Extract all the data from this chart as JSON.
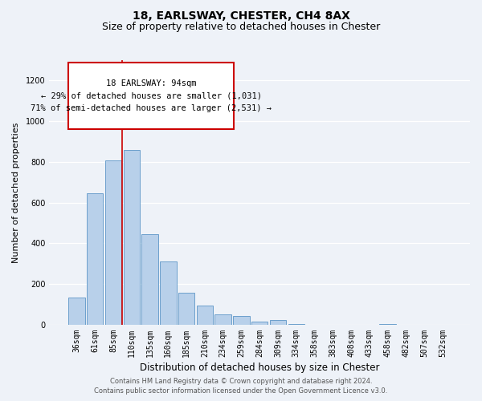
{
  "title": "18, EARLSWAY, CHESTER, CH4 8AX",
  "subtitle": "Size of property relative to detached houses in Chester",
  "xlabel": "Distribution of detached houses by size in Chester",
  "ylabel": "Number of detached properties",
  "bar_labels": [
    "36sqm",
    "61sqm",
    "85sqm",
    "110sqm",
    "135sqm",
    "160sqm",
    "185sqm",
    "210sqm",
    "234sqm",
    "259sqm",
    "284sqm",
    "309sqm",
    "334sqm",
    "358sqm",
    "383sqm",
    "408sqm",
    "433sqm",
    "458sqm",
    "482sqm",
    "507sqm",
    "532sqm"
  ],
  "bar_values": [
    135,
    645,
    808,
    860,
    445,
    310,
    158,
    95,
    52,
    42,
    15,
    22,
    5,
    0,
    0,
    0,
    0,
    5,
    0,
    0,
    0
  ],
  "bar_color": "#b8d0ea",
  "bar_edgecolor": "#6ca0cc",
  "vline_color": "#cc0000",
  "vline_x": 2.5,
  "annotation_line1": "18 EARLSWAY: 94sqm",
  "annotation_line2": "← 29% of detached houses are smaller (1,031)",
  "annotation_line3": "71% of semi-detached houses are larger (2,531) →",
  "ylim": [
    0,
    1300
  ],
  "yticks": [
    0,
    200,
    400,
    600,
    800,
    1000,
    1200
  ],
  "footer_line1": "Contains HM Land Registry data © Crown copyright and database right 2024.",
  "footer_line2": "Contains public sector information licensed under the Open Government Licence v3.0.",
  "bg_color": "#eef2f8",
  "grid_color": "#ffffff",
  "title_fontsize": 10,
  "subtitle_fontsize": 9,
  "axis_label_fontsize": 8.5,
  "tick_fontsize": 7,
  "footer_fontsize": 6,
  "ylabel_fontsize": 8
}
